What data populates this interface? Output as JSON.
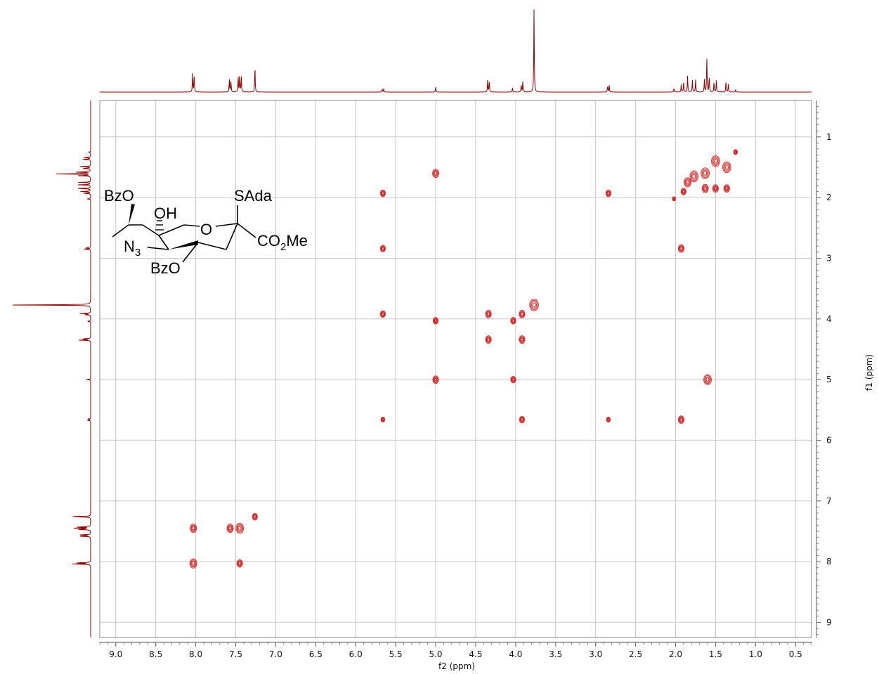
{
  "chart_data": {
    "type": "heatmap",
    "subtype": "2D COSY NMR spectrum",
    "xlabel": "f2 (ppm)",
    "ylabel": "f1 (ppm)",
    "x_axis_reversed": true,
    "y_axis_reversed": true,
    "xlim": [
      9.2,
      0.3
    ],
    "ylim": [
      0.4,
      9.25
    ],
    "x_ticks": [
      9.0,
      8.5,
      8.0,
      7.5,
      7.0,
      6.5,
      6.0,
      5.5,
      5.0,
      4.5,
      4.0,
      3.5,
      3.0,
      2.5,
      2.0,
      1.5,
      1.0,
      0.5
    ],
    "x_tick_labels": [
      "9.0",
      "8.5",
      "8.0",
      "7.5",
      "7.0",
      "6.5",
      "6.0",
      "5.5",
      "5.0",
      "4.5",
      "4.0",
      "3.5",
      "3.0",
      "2.5",
      "2.0",
      "1.5",
      "1.0",
      "0.5"
    ],
    "y_ticks": [
      1,
      2,
      3,
      4,
      5,
      6,
      7,
      8,
      9
    ],
    "y_tick_labels": [
      "1",
      "2",
      "3",
      "4",
      "5",
      "6",
      "7",
      "8",
      "9"
    ],
    "grid": true,
    "colors": {
      "spectrum": "#8b0000",
      "contour": "#d42020",
      "grid": "#c8c8c8",
      "frame": "#888888"
    },
    "projection_1d_peaks": [
      {
        "ppm": 8.04,
        "h": 0.22
      },
      {
        "ppm": 8.02,
        "h": 0.22
      },
      {
        "ppm": 7.58,
        "h": 0.16
      },
      {
        "ppm": 7.56,
        "h": 0.14
      },
      {
        "ppm": 7.47,
        "h": 0.18
      },
      {
        "ppm": 7.45,
        "h": 0.22
      },
      {
        "ppm": 7.43,
        "h": 0.18
      },
      {
        "ppm": 7.26,
        "h": 0.32
      },
      {
        "ppm": 5.67,
        "h": 0.04
      },
      {
        "ppm": 5.65,
        "h": 0.04
      },
      {
        "ppm": 5.0,
        "h": 0.06
      },
      {
        "ppm": 4.35,
        "h": 0.14
      },
      {
        "ppm": 4.33,
        "h": 0.14
      },
      {
        "ppm": 4.04,
        "h": 0.05
      },
      {
        "ppm": 3.93,
        "h": 0.09
      },
      {
        "ppm": 3.91,
        "h": 0.13
      },
      {
        "ppm": 3.77,
        "h": 1.0
      },
      {
        "ppm": 2.85,
        "h": 0.08
      },
      {
        "ppm": 2.83,
        "h": 0.08
      },
      {
        "ppm": 2.02,
        "h": 0.05
      },
      {
        "ppm": 1.93,
        "h": 0.09
      },
      {
        "ppm": 1.9,
        "h": 0.12
      },
      {
        "ppm": 1.85,
        "h": 0.2
      },
      {
        "ppm": 1.79,
        "h": 0.15
      },
      {
        "ppm": 1.75,
        "h": 0.15
      },
      {
        "ppm": 1.64,
        "h": 0.15
      },
      {
        "ppm": 1.61,
        "h": 0.42
      },
      {
        "ppm": 1.58,
        "h": 0.2
      },
      {
        "ppm": 1.52,
        "h": 0.12
      },
      {
        "ppm": 1.49,
        "h": 0.14
      },
      {
        "ppm": 1.37,
        "h": 0.14
      },
      {
        "ppm": 1.34,
        "h": 0.1
      },
      {
        "ppm": 1.25,
        "h": 0.03
      }
    ],
    "cross_peaks": [
      {
        "f2": 5.0,
        "f1": 1.6,
        "r": 1.0
      },
      {
        "f2": 5.66,
        "f1": 1.93,
        "r": 0.8
      },
      {
        "f2": 2.84,
        "f1": 1.93,
        "r": 0.8
      },
      {
        "f2": 5.66,
        "f1": 2.84,
        "r": 0.8
      },
      {
        "f2": 1.93,
        "f1": 2.84,
        "r": 0.9
      },
      {
        "f2": 5.66,
        "f1": 3.92,
        "r": 0.8
      },
      {
        "f2": 5.0,
        "f1": 4.03,
        "r": 0.8
      },
      {
        "f2": 4.34,
        "f1": 3.92,
        "r": 0.9
      },
      {
        "f2": 4.34,
        "f1": 4.34,
        "r": 0.9
      },
      {
        "f2": 4.03,
        "f1": 4.03,
        "r": 0.8
      },
      {
        "f2": 3.92,
        "f1": 3.92,
        "r": 0.9
      },
      {
        "f2": 3.92,
        "f1": 4.34,
        "r": 0.9
      },
      {
        "f2": 3.77,
        "f1": 3.77,
        "r": 1.4
      },
      {
        "f2": 5.0,
        "f1": 5.0,
        "r": 0.9
      },
      {
        "f2": 4.03,
        "f1": 5.0,
        "r": 0.8
      },
      {
        "f2": 1.6,
        "f1": 5.0,
        "r": 1.2
      },
      {
        "f2": 5.66,
        "f1": 5.66,
        "r": 0.6
      },
      {
        "f2": 3.92,
        "f1": 5.66,
        "r": 0.8
      },
      {
        "f2": 2.84,
        "f1": 5.66,
        "r": 0.6
      },
      {
        "f2": 1.93,
        "f1": 5.66,
        "r": 0.9
      },
      {
        "f2": 8.03,
        "f1": 7.45,
        "r": 1.0
      },
      {
        "f2": 7.57,
        "f1": 7.45,
        "r": 1.0
      },
      {
        "f2": 7.45,
        "f1": 7.45,
        "r": 1.2
      },
      {
        "f2": 7.26,
        "f1": 7.26,
        "r": 0.8
      },
      {
        "f2": 8.03,
        "f1": 8.03,
        "r": 1.1
      },
      {
        "f2": 7.45,
        "f1": 8.03,
        "r": 0.9
      },
      {
        "f2": 1.5,
        "f1": 1.4,
        "r": 1.3
      },
      {
        "f2": 1.36,
        "f1": 1.5,
        "r": 1.3
      },
      {
        "f2": 1.63,
        "f1": 1.6,
        "r": 1.3
      },
      {
        "f2": 1.77,
        "f1": 1.65,
        "r": 1.3
      },
      {
        "f2": 1.85,
        "f1": 1.75,
        "r": 1.1
      },
      {
        "f2": 1.63,
        "f1": 1.85,
        "r": 1.0
      },
      {
        "f2": 1.5,
        "f1": 1.85,
        "r": 0.9
      },
      {
        "f2": 1.36,
        "f1": 1.85,
        "r": 0.9
      },
      {
        "f2": 1.9,
        "f1": 1.9,
        "r": 0.8
      },
      {
        "f2": 1.25,
        "f1": 1.25,
        "r": 0.6
      },
      {
        "f2": 2.02,
        "f1": 2.02,
        "r": 0.5
      }
    ]
  },
  "structure": {
    "labels": {
      "bzo_top": "BzO",
      "oh": "OH",
      "ring_o": "O",
      "sada": "SAda",
      "co2me_a": "CO",
      "co2me_sub": "2",
      "co2me_b": "Me",
      "n3_a": "N",
      "n3_sub": "3",
      "bzo_bottom": "BzO"
    }
  }
}
